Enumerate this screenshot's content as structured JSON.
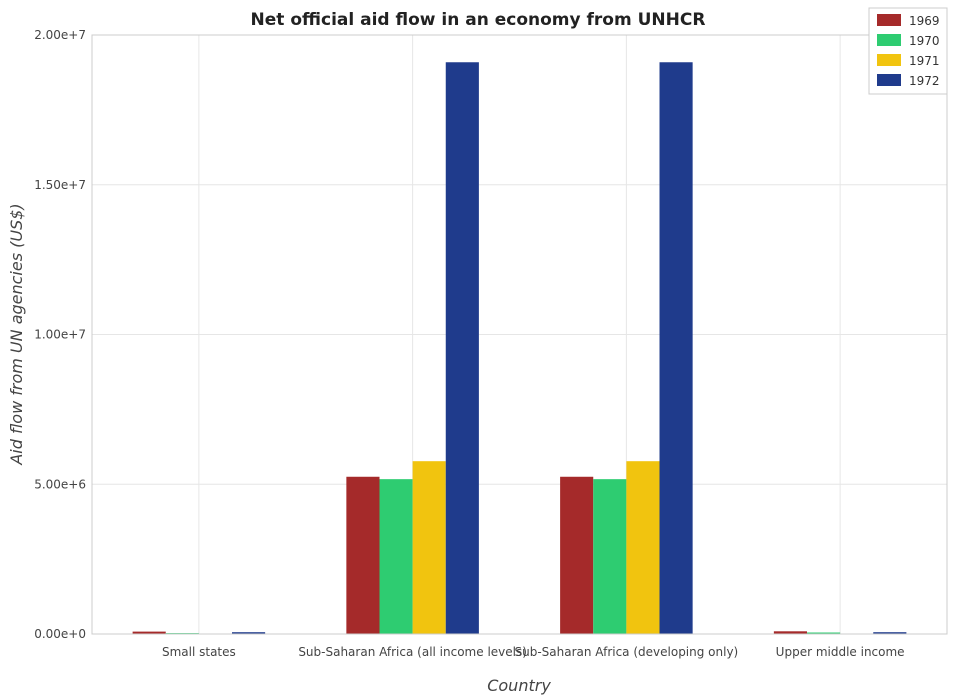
{
  "chart_data": {
    "type": "bar",
    "title": "Net official aid flow in an economy from UNHCR",
    "xlabel": "Country",
    "ylabel": "Aid flow from UN agencies (US$)",
    "categories": [
      "Small states",
      "Sub-Saharan Africa (all income levels)",
      "Sub-Saharan Africa (developing only)",
      "Upper middle income"
    ],
    "series": [
      {
        "name": "1969",
        "color": "#a52a2a",
        "values": [
          80000,
          5250000,
          5250000,
          90000
        ]
      },
      {
        "name": "1970",
        "color": "#2ecc71",
        "values": [
          30000,
          5170000,
          5170000,
          50000
        ]
      },
      {
        "name": "1971",
        "color": "#f1c40f",
        "values": [
          10000,
          5770000,
          5770000,
          10000
        ]
      },
      {
        "name": "1972",
        "color": "#1f3b8c",
        "values": [
          60000,
          19090000,
          19090000,
          60000
        ]
      }
    ],
    "ylim": [
      0,
      20000000
    ],
    "yticks": [
      0,
      5000000,
      10000000,
      15000000,
      20000000
    ],
    "ytick_labels": [
      "0.00e+0",
      "5.00e+6",
      "1.00e+7",
      "1.50e+7",
      "2.00e+7"
    ],
    "grid": true,
    "legend_position": "top-right"
  }
}
